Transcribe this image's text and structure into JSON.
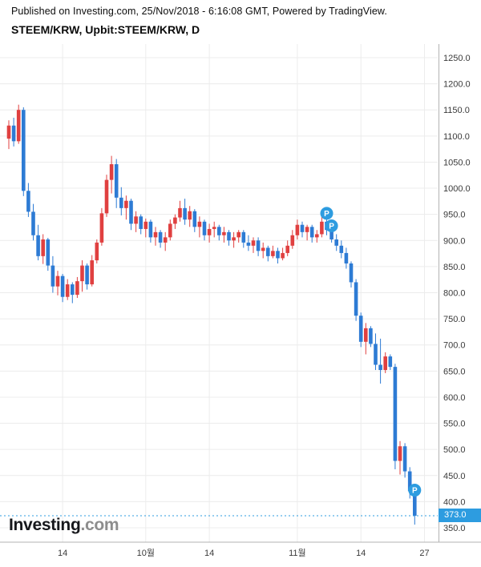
{
  "header": {
    "published_line": "Published on Investing.com, 25/Nov/2018 - 6:16:08 GMT, Powered by TradingView.",
    "title": "STEEM/KRW, Upbit:STEEM/KRW, D"
  },
  "logo": {
    "name": "Investing",
    "tld": ".com"
  },
  "chart_data": {
    "type": "candlestick",
    "title": "STEEM/KRW, Upbit:STEEM/KRW, D",
    "symbol": "STEEM/KRW",
    "exchange": "Upbit",
    "interval": "D",
    "ylim": [
      350,
      1250
    ],
    "y_tick_step": 50,
    "y_tick_labels": [
      "1250.0",
      "1200.0",
      "1150.0",
      "1100.0",
      "1050.0",
      "1000.0",
      "950.0",
      "900.0",
      "850.0",
      "800.0",
      "750.0",
      "700.0",
      "650.0",
      "600.0",
      "550.0",
      "500.0",
      "450.0",
      "400.0",
      "350.0"
    ],
    "x_ticks": [
      {
        "label": "14",
        "index": 11
      },
      {
        "label": "10월",
        "index": 28
      },
      {
        "label": "14",
        "index": 41
      },
      {
        "label": "11월",
        "index": 59
      },
      {
        "label": "14",
        "index": 72
      },
      {
        "label": "27",
        "index": 85
      }
    ],
    "current_price": 373.0,
    "current_price_label": "373.0",
    "colors": {
      "up": "#e04040",
      "down": "#2d7bd4",
      "accent": "#2d9ce0",
      "grid": "#ececec",
      "axis_line": "#b3b3b3",
      "axis_text": "#3a3a3a"
    },
    "candles": [
      [
        1095,
        1130,
        1075,
        1120
      ],
      [
        1120,
        1135,
        1080,
        1090
      ],
      [
        1090,
        1160,
        1085,
        1150
      ],
      [
        1150,
        1155,
        985,
        995
      ],
      [
        995,
        1010,
        945,
        955
      ],
      [
        955,
        970,
        900,
        910
      ],
      [
        910,
        930,
        862,
        870
      ],
      [
        870,
        912,
        855,
        902
      ],
      [
        902,
        905,
        842,
        852
      ],
      [
        852,
        870,
        800,
        812
      ],
      [
        812,
        842,
        795,
        832
      ],
      [
        832,
        836,
        782,
        792
      ],
      [
        792,
        826,
        786,
        816
      ],
      [
        816,
        820,
        780,
        796
      ],
      [
        796,
        830,
        790,
        822
      ],
      [
        822,
        862,
        802,
        852
      ],
      [
        852,
        856,
        806,
        816
      ],
      [
        816,
        872,
        812,
        862
      ],
      [
        862,
        902,
        856,
        896
      ],
      [
        896,
        962,
        890,
        952
      ],
      [
        952,
        1026,
        945,
        1016
      ],
      [
        1016,
        1062,
        990,
        1046
      ],
      [
        1046,
        1056,
        962,
        982
      ],
      [
        982,
        1002,
        948,
        962
      ],
      [
        962,
        986,
        940,
        976
      ],
      [
        976,
        980,
        920,
        932
      ],
      [
        932,
        956,
        916,
        946
      ],
      [
        946,
        950,
        912,
        922
      ],
      [
        922,
        942,
        906,
        936
      ],
      [
        936,
        940,
        896,
        906
      ],
      [
        906,
        926,
        890,
        916
      ],
      [
        916,
        920,
        886,
        896
      ],
      [
        896,
        916,
        880,
        906
      ],
      [
        906,
        940,
        900,
        932
      ],
      [
        932,
        950,
        922,
        944
      ],
      [
        944,
        976,
        936,
        962
      ],
      [
        962,
        980,
        930,
        940
      ],
      [
        940,
        966,
        926,
        956
      ],
      [
        956,
        960,
        916,
        926
      ],
      [
        926,
        946,
        906,
        936
      ],
      [
        936,
        940,
        900,
        910
      ],
      [
        910,
        932,
        896,
        922
      ],
      [
        922,
        936,
        906,
        926
      ],
      [
        926,
        930,
        900,
        910
      ],
      [
        910,
        926,
        896,
        916
      ],
      [
        916,
        920,
        890,
        900
      ],
      [
        900,
        916,
        886,
        906
      ],
      [
        906,
        920,
        896,
        916
      ],
      [
        916,
        920,
        886,
        896
      ],
      [
        896,
        910,
        880,
        890
      ],
      [
        890,
        906,
        876,
        900
      ],
      [
        900,
        906,
        870,
        880
      ],
      [
        880,
        896,
        866,
        886
      ],
      [
        886,
        890,
        860,
        870
      ],
      [
        870,
        890,
        866,
        880
      ],
      [
        880,
        886,
        856,
        866
      ],
      [
        866,
        886,
        862,
        876
      ],
      [
        876,
        900,
        870,
        890
      ],
      [
        890,
        920,
        884,
        910
      ],
      [
        910,
        940,
        902,
        930
      ],
      [
        930,
        936,
        906,
        916
      ],
      [
        916,
        930,
        900,
        926
      ],
      [
        926,
        930,
        896,
        906
      ],
      [
        906,
        920,
        896,
        912
      ],
      [
        912,
        946,
        906,
        936
      ],
      [
        936,
        942,
        910,
        920
      ],
      [
        920,
        926,
        896,
        902
      ],
      [
        902,
        912,
        880,
        890
      ],
      [
        890,
        900,
        866,
        876
      ],
      [
        876,
        886,
        846,
        856
      ],
      [
        856,
        860,
        810,
        820
      ],
      [
        820,
        826,
        746,
        756
      ],
      [
        756,
        762,
        696,
        706
      ],
      [
        706,
        742,
        682,
        732
      ],
      [
        732,
        736,
        696,
        702
      ],
      [
        702,
        722,
        652,
        662
      ],
      [
        662,
        712,
        626,
        652
      ],
      [
        652,
        686,
        646,
        678
      ],
      [
        678,
        682,
        652,
        658
      ],
      [
        658,
        664,
        462,
        478
      ],
      [
        478,
        516,
        452,
        506
      ],
      [
        506,
        512,
        446,
        458
      ],
      [
        458,
        466,
        406,
        420
      ],
      [
        420,
        426,
        356,
        373
      ]
    ],
    "markers": [
      {
        "label": "P",
        "index": 65,
        "price": 952
      },
      {
        "label": "P",
        "index": 66,
        "price": 928
      },
      {
        "label": "P",
        "index": 83,
        "price": 422
      }
    ]
  }
}
